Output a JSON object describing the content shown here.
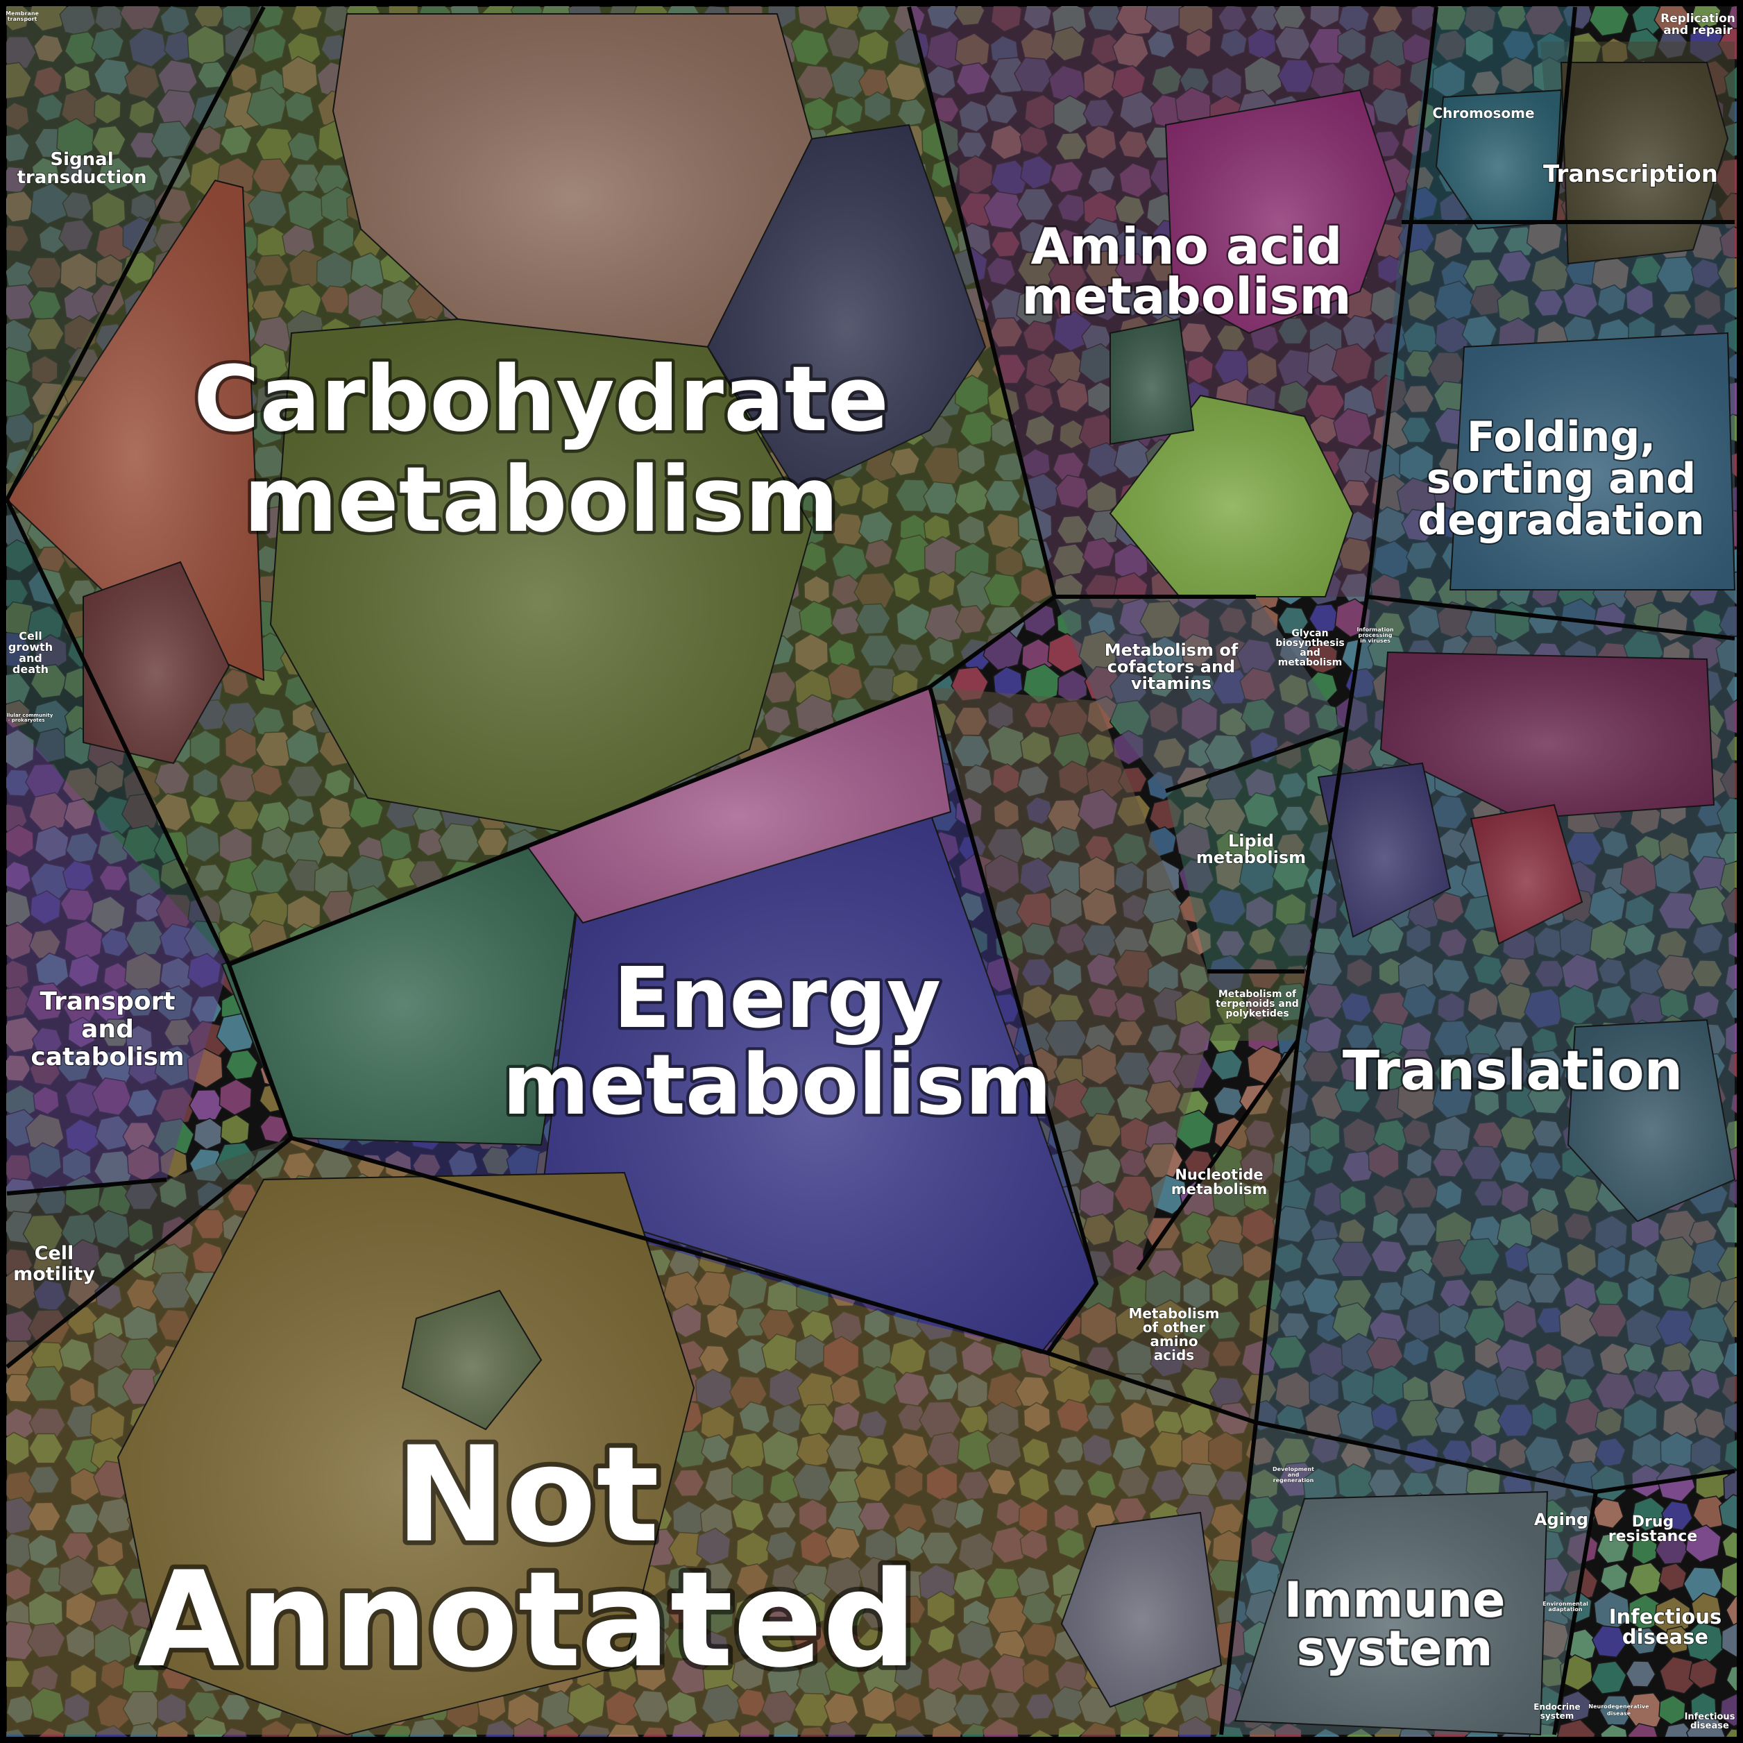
{
  "chart_data": {
    "type": "voronoi-treemap",
    "title": "",
    "groups": [
      {
        "name": "Carbohydrate metabolism",
        "color": "#6b7a3a"
      },
      {
        "name": "Energy metabolism",
        "color": "#3f3a88"
      },
      {
        "name": "Not Annotated",
        "color": "#8f7a3c"
      },
      {
        "name": "Amino acid metabolism",
        "color": "#7a3e6a"
      },
      {
        "name": "Translation",
        "color": "#4a6a7a"
      },
      {
        "name": "Folding, sorting and degradation",
        "color": "#3e6470"
      },
      {
        "name": "Transcription",
        "color": "#4f4a36"
      },
      {
        "name": "Chromosome",
        "color": "#2f6a7a"
      },
      {
        "name": "Replication and repair",
        "color": "#3a4a5a"
      },
      {
        "name": "Immune system",
        "color": "#55717a"
      },
      {
        "name": "Signal transduction",
        "color": "#5a6a4a"
      },
      {
        "name": "Transport and catabolism",
        "color": "#6a4a9a"
      },
      {
        "name": "Cell motility",
        "color": "#5a5a4a"
      },
      {
        "name": "Cell growth and death",
        "color": "#3a5a5a"
      },
      {
        "name": "Membrane transport",
        "color": "#3a6a7a"
      },
      {
        "name": "Metabolism of cofactors and vitamins",
        "color": "#5a6a7a"
      },
      {
        "name": "Glycan biosynthesis and metabolism",
        "color": "#8a7a8a"
      },
      {
        "name": "Lipid metabolism",
        "color": "#3a8a6a"
      },
      {
        "name": "Metabolism of terpenoids and polyketides",
        "color": "#5a6a3a"
      },
      {
        "name": "Nucleotide metabolism",
        "color": "#6a5a4a"
      },
      {
        "name": "Metabolism of other amino acids",
        "color": "#7a6a3a"
      },
      {
        "name": "Aging",
        "color": "#6a7a5a"
      },
      {
        "name": "Drug resistance",
        "color": "#4a7a6a"
      },
      {
        "name": "Infectious disease",
        "color": "#5a7a3a"
      },
      {
        "name": "Endocrine system",
        "color": "#7a4a3a"
      },
      {
        "name": "Development and regeneration",
        "color": "#4a4a6a"
      },
      {
        "name": "Environmental adaptation",
        "color": "#5a4a6a"
      },
      {
        "name": "Neurodegenerative disease",
        "color": "#3a4a3a"
      },
      {
        "name": "Information processing in viruses",
        "color": "#5a3a4a"
      },
      {
        "name": "Cellular community - prokaryotes",
        "color": "#5a5a3a"
      }
    ]
  },
  "labels": {
    "carbohydrate": [
      "Carbohydrate",
      "metabolism"
    ],
    "energy": [
      "Energy",
      "metabolism"
    ],
    "not_annotated": [
      "Not",
      "Annotated"
    ],
    "amino": [
      "Amino acid",
      "metabolism"
    ],
    "translation": "Translation",
    "folding": [
      "Folding,",
      "sorting and",
      "degradation"
    ],
    "transcription": "Transcription",
    "chromosome": "Chromosome",
    "replication": [
      "Replication",
      "and repair"
    ],
    "immune": [
      "Immune",
      "system"
    ],
    "signal": [
      "Signal",
      "transduction"
    ],
    "transport": [
      "Transport",
      "and",
      "catabolism"
    ],
    "motility": [
      "Cell",
      "motility"
    ],
    "growth": [
      "Cell",
      "growth",
      "and",
      "death"
    ],
    "membrane": [
      "Membrane",
      "transport"
    ],
    "cofactors": [
      "Metabolism of",
      "cofactors and",
      "vitamins"
    ],
    "glycan": [
      "Glycan",
      "biosynthesis",
      "and",
      "metabolism"
    ],
    "lipid": [
      "Lipid",
      "metabolism"
    ],
    "terpenoids": [
      "Metabolism of",
      "terpenoids and",
      "polyketides"
    ],
    "nucleotide": [
      "Nucleotide",
      "metabolism"
    ],
    "other_amino": [
      "Metabolism",
      "of other",
      "amino",
      "acids"
    ],
    "aging": "Aging",
    "drug": [
      "Drug",
      "resistance"
    ],
    "infectious": [
      "Infectious",
      "disease"
    ],
    "infectious_small": [
      "Infectious",
      "disease"
    ],
    "endocrine": [
      "Endocrine",
      "system"
    ],
    "development": [
      "Development",
      "and",
      "regeneration"
    ],
    "environmental": [
      "Environmental",
      "adaptation"
    ],
    "neuro": [
      "Neurodegenerative",
      "disease"
    ],
    "info_viruses": [
      "Information",
      "processing",
      "in viruses"
    ],
    "cell_community": [
      "Cellular community",
      "- prokaryotes"
    ]
  }
}
